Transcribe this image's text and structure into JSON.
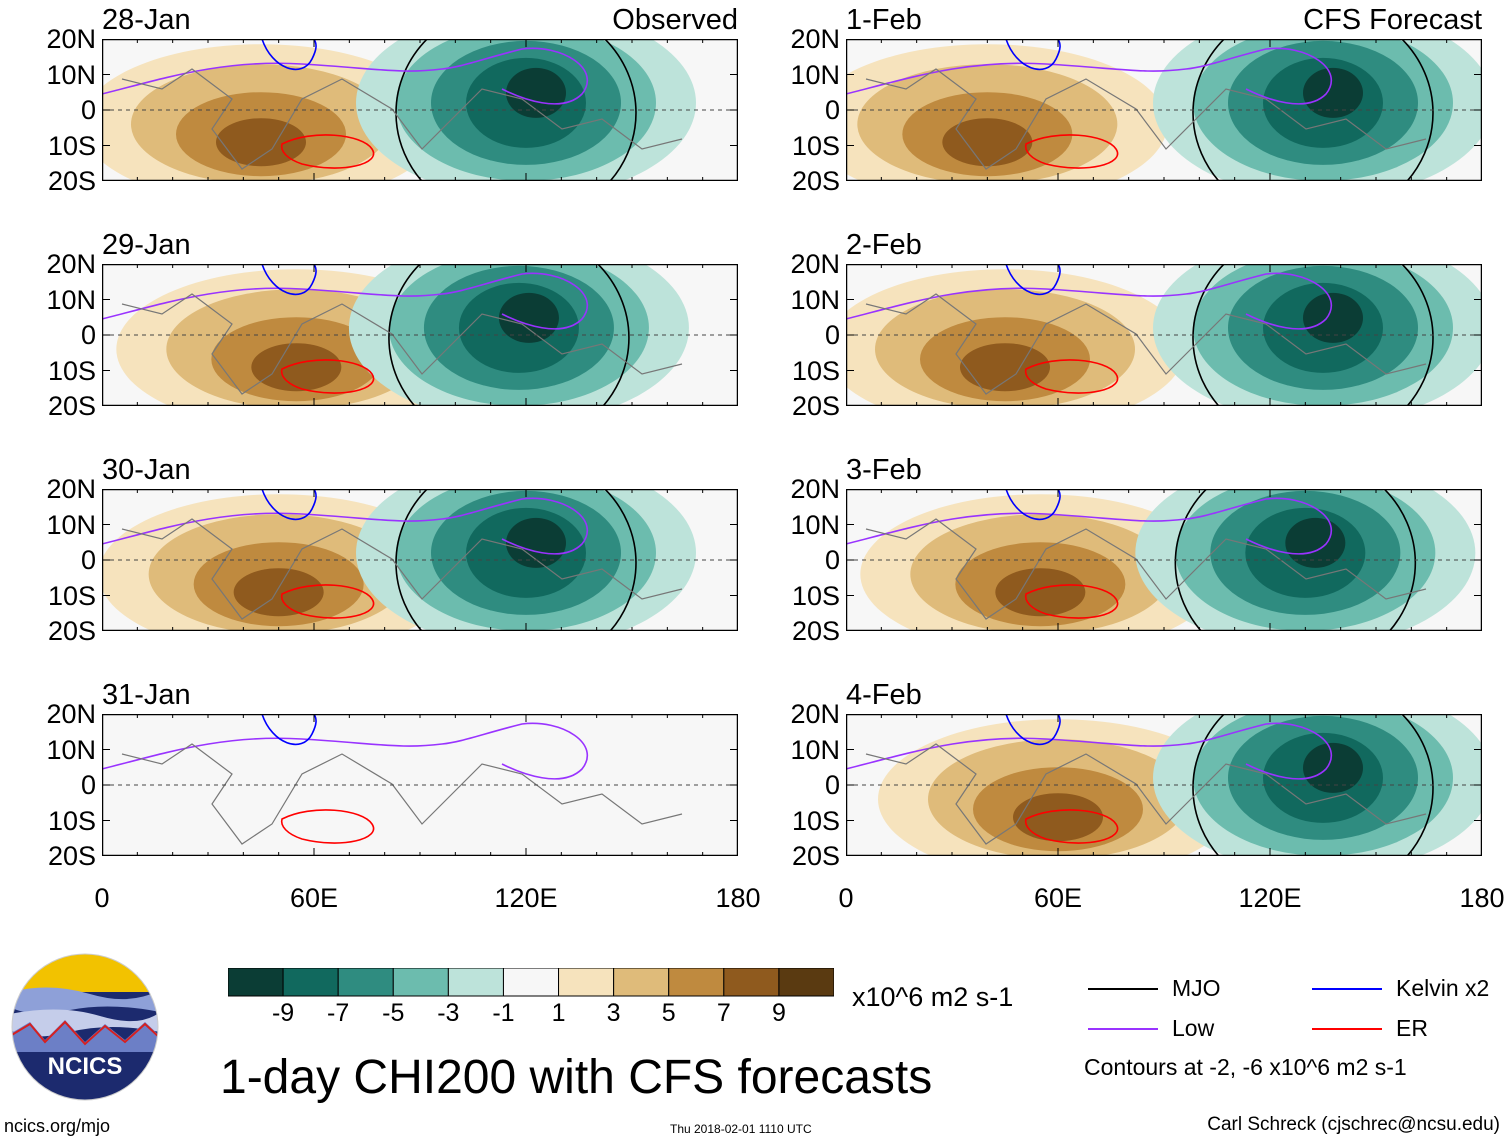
{
  "chart_data": {
    "type": "heatmap",
    "title": "1-day CHI200 with CFS forecasts",
    "variable": "CHI200",
    "units": "x10^6 m2 s-1",
    "x_ticks": [
      "0",
      "60E",
      "120E",
      "180"
    ],
    "y_ticks": [
      "20N",
      "10N",
      "0",
      "10S",
      "20S"
    ],
    "xlim": [
      0,
      180
    ],
    "ylim": [
      -20,
      20
    ],
    "columns": [
      {
        "label": "Observed",
        "panels": [
          {
            "date": "28-Jan",
            "negative_center_lon": 120,
            "positive_center_lon": 45
          },
          {
            "date": "29-Jan",
            "negative_center_lon": 118,
            "positive_center_lon": 55
          },
          {
            "date": "30-Jan",
            "negative_center_lon": 120,
            "positive_center_lon": 50
          },
          {
            "date": "31-Jan",
            "negative_center_lon": null,
            "positive_center_lon": null
          }
        ]
      },
      {
        "label": "CFS Forecast",
        "panels": [
          {
            "date": "1-Feb",
            "negative_center_lon": 135,
            "positive_center_lon": 40
          },
          {
            "date": "2-Feb",
            "negative_center_lon": 135,
            "positive_center_lon": 45
          },
          {
            "date": "3-Feb",
            "negative_center_lon": 130,
            "positive_center_lon": 55
          },
          {
            "date": "4-Feb",
            "negative_center_lon": 135,
            "positive_center_lon": 60
          }
        ]
      }
    ],
    "colorbar": {
      "labels": [
        "-9",
        "-7",
        "-5",
        "-3",
        "-1",
        "1",
        "3",
        "5",
        "7",
        "9"
      ],
      "colors": [
        "#0b3d35",
        "#11695e",
        "#2f8c80",
        "#6cbcae",
        "#bde3da",
        "#f7f7f7",
        "#f6e3bd",
        "#dfbb7a",
        "#bf8a3f",
        "#8f5a1e",
        "#5a3a11"
      ]
    },
    "legend": {
      "entries": [
        {
          "name": "MJO",
          "color": "#000000"
        },
        {
          "name": "Kelvin x2",
          "color": "#0000ff"
        },
        {
          "name": "Low",
          "color": "#9933ff"
        },
        {
          "name": "ER",
          "color": "#ff0000"
        }
      ],
      "note": "Contours at -2, -6 x10^6 m2 s-1"
    }
  },
  "credits": {
    "logo_text": "NCICS",
    "website": "ncics.org/mjo",
    "timestamp": "Thu 2018-02-01 1110 UTC",
    "author": "Carl Schreck (cjschrec@ncsu.edu)"
  }
}
